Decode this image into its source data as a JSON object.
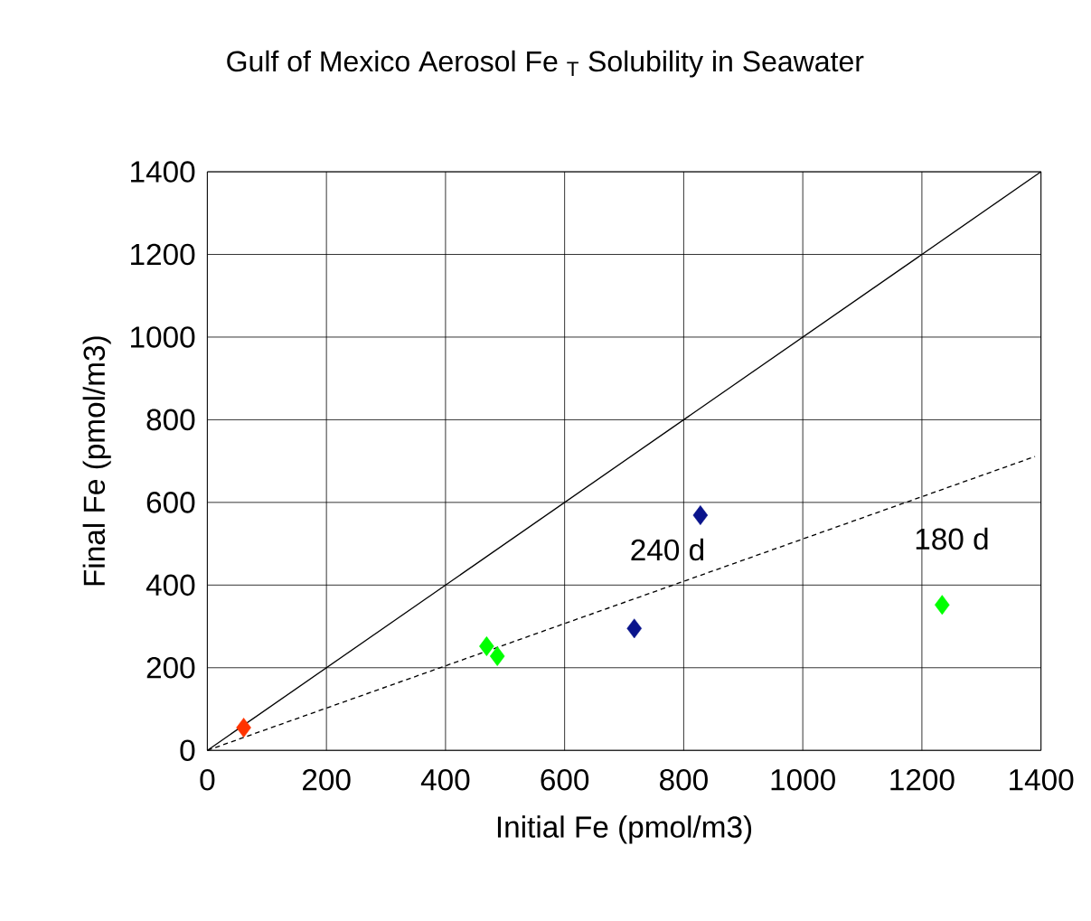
{
  "chart_data": {
    "type": "scatter",
    "title": "Gulf of Mexico Aerosol Fe $_{T}$ Solubility in Seawater",
    "xlabel": "Initial Fe (pmol/m3)",
    "ylabel": "Final Fe (pmol/m3)",
    "xlim": [
      0,
      1400
    ],
    "ylim": [
      0,
      1400
    ],
    "xticks": [
      0,
      200,
      400,
      600,
      800,
      1000,
      1200,
      1400
    ],
    "yticks": [
      0,
      200,
      400,
      600,
      800,
      1000,
      1200,
      1400
    ],
    "grid": true,
    "marker": "diamond",
    "series": [
      {
        "color": "#ff3300",
        "x": [
          61
        ],
        "values": [
          55
        ]
      },
      {
        "color": "#00ff00",
        "x": [
          469,
          487,
          1234
        ],
        "values": [
          252,
          228,
          352
        ]
      },
      {
        "color": "#0a148c",
        "x": [
          717,
          828
        ],
        "values": [
          295,
          569
        ]
      },
      {
        "type": "line",
        "color": "#000000",
        "line_style": "solid",
        "marker": "none",
        "x": [
          0,
          1400
        ],
        "values": [
          0,
          1400
        ]
      },
      {
        "type": "line",
        "color": "#000000",
        "line_style": "dashed",
        "marker": "none",
        "x": [
          0,
          1390
        ],
        "values": [
          0,
          711
        ]
      }
    ],
    "annotations": [
      "240 d",
      "180 d"
    ]
  }
}
